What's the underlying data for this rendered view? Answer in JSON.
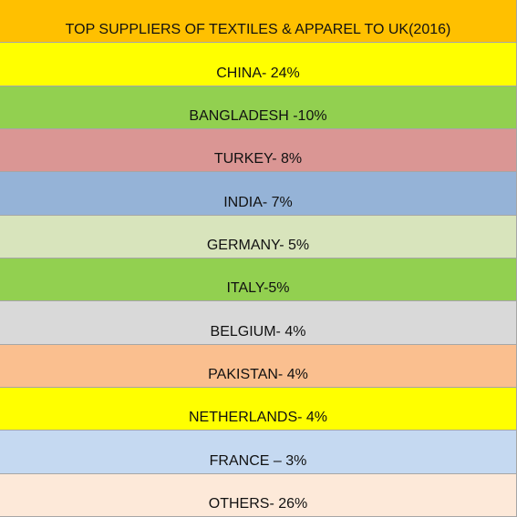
{
  "header": {
    "title": "TOP SUPPLIERS OF TEXTILES & APPAREL TO UK(2016)",
    "color": "#ffc000"
  },
  "table": {
    "rows": [
      {
        "text": "CHINA- 24%",
        "color": "#ffff00"
      },
      {
        "text": "BANGLADESH -10%",
        "color": "#92d050"
      },
      {
        "text": "TURKEY- 8%",
        "color": "#da9694"
      },
      {
        "text": "INDIA- 7%",
        "color": "#95b3d7"
      },
      {
        "text": "GERMANY- 5%",
        "color": "#d8e4bc"
      },
      {
        "text": "ITALY-5%",
        "color": "#92d050"
      },
      {
        "text": "BELGIUM- 4%",
        "color": "#d9d9d9"
      },
      {
        "text": "PAKISTAN- 4%",
        "color": "#fabf8f"
      },
      {
        "text": "NETHERLANDS- 4%",
        "color": "#ffff00"
      },
      {
        "text": "FRANCE – 3%",
        "color": "#c5d9f1"
      },
      {
        "text": "OTHERS- 26%",
        "color": "#fde9d9"
      }
    ]
  }
}
